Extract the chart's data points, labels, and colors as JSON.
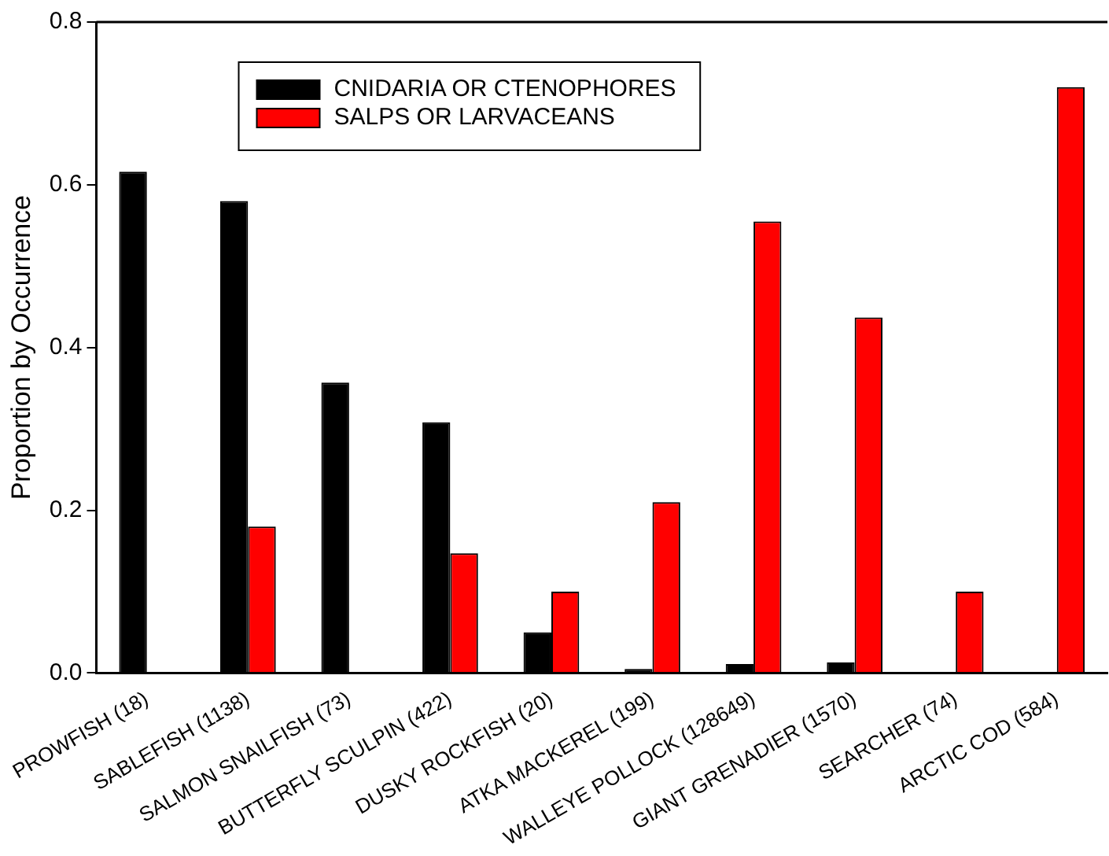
{
  "chart_data": {
    "type": "bar",
    "ylabel": "Proportion by Occurrence",
    "categories": [
      "PROWFISH (18)",
      "SABLEFISH (1138)",
      "SALMON SNAILFISH (73)",
      "BUTTERFLY SCULPIN (422)",
      "DUSKY ROCKFISH (20)",
      "ATKA MACKEREL (199)",
      "WALLEYE POLLOCK (128649)",
      "GIANT GRENADIER (1570)",
      "SEARCHER (74)",
      "ARCTIC COD (584)"
    ],
    "series": [
      {
        "name": "CNIDARIA OR CTENOPHORES",
        "color": "#000000",
        "values": [
          0.616,
          0.58,
          0.357,
          0.308,
          0.05,
          0.005,
          0.011,
          0.013,
          null,
          null
        ]
      },
      {
        "name": "SALPS OR LARVACEANS",
        "color": "#ff0000",
        "values": [
          null,
          0.18,
          null,
          0.147,
          0.1,
          0.21,
          0.555,
          0.437,
          0.1,
          0.72
        ]
      }
    ],
    "ylim": [
      0,
      0.8
    ],
    "yticks": [
      {
        "value": 0,
        "label": "0.0"
      },
      {
        "value": 0.2,
        "label": "0.2"
      },
      {
        "value": 0.4,
        "label": "0.4"
      },
      {
        "value": 0.6,
        "label": "0.6"
      },
      {
        "value": 0.8,
        "label": "0.8"
      }
    ],
    "grid": false,
    "legend": "top"
  }
}
